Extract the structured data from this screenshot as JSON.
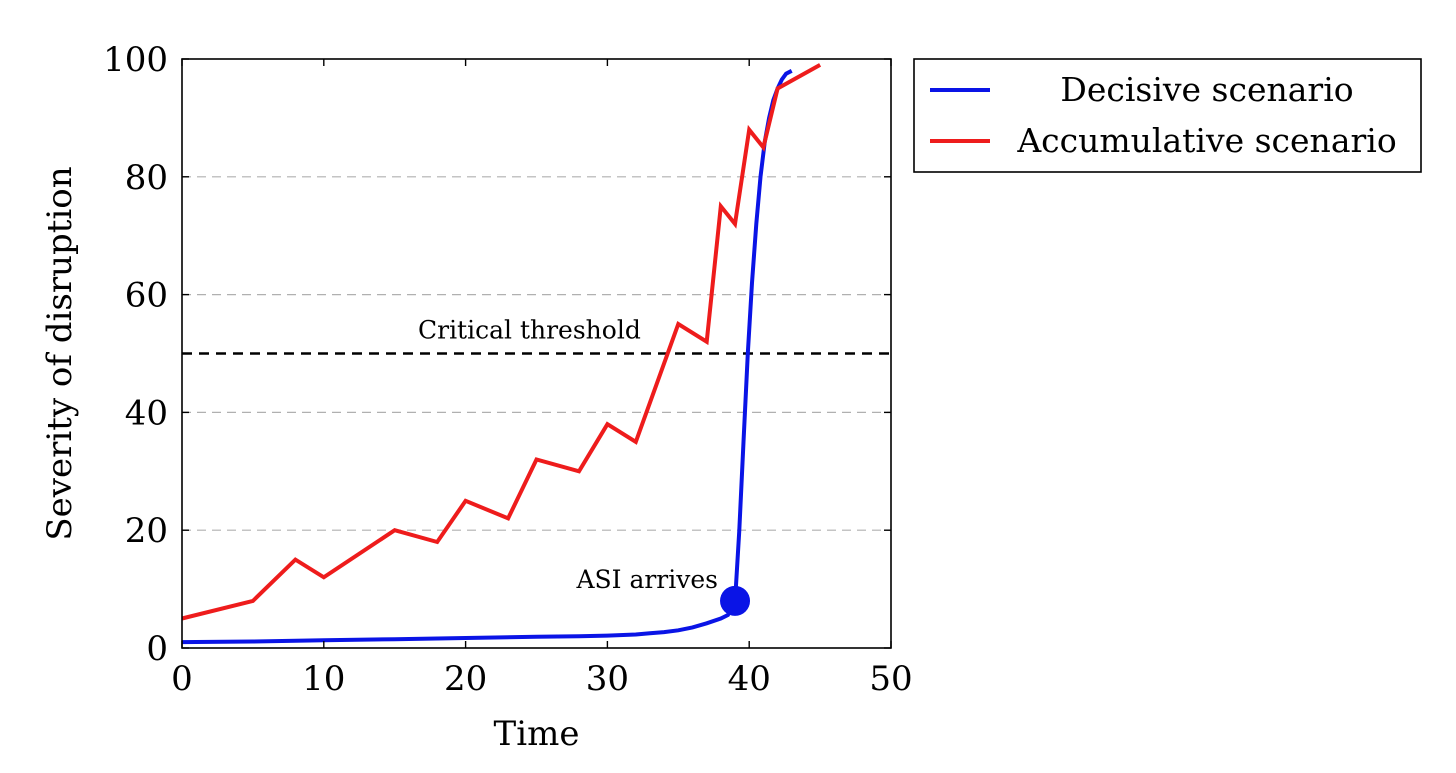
{
  "chart_data": {
    "type": "line",
    "xlabel": "Time",
    "ylabel": "Severity of disruption",
    "xlim": [
      0,
      50
    ],
    "ylim": [
      0,
      100
    ],
    "x_ticks": [
      0,
      10,
      20,
      30,
      40,
      50
    ],
    "y_ticks": [
      0,
      20,
      40,
      60,
      80,
      100
    ],
    "grid": "horizontal dashed",
    "legend_position": "outside-right-top",
    "series": [
      {
        "name": "Decisive scenario",
        "color": "#0a14e6",
        "x": [
          0,
          5,
          10,
          15,
          20,
          25,
          28,
          30,
          32,
          33,
          34,
          35,
          36,
          37,
          38,
          38.5,
          39,
          39.3,
          39.6,
          39.9,
          40.2,
          40.5,
          40.8,
          41.1,
          41.4,
          41.7,
          42,
          42.3,
          42.6,
          43
        ],
        "y": [
          1,
          1.1,
          1.3,
          1.5,
          1.7,
          1.9,
          2.0,
          2.1,
          2.3,
          2.5,
          2.7,
          3.0,
          3.5,
          4.2,
          5.0,
          5.6,
          7.8,
          20,
          35,
          50,
          62,
          72,
          80,
          86,
          90,
          93,
          95,
          96.5,
          97.5,
          98
        ]
      },
      {
        "name": "Accumulative scenario",
        "color": "#ee1c1c",
        "x": [
          0,
          5,
          8,
          10,
          15,
          18,
          20,
          23,
          25,
          28,
          30,
          32,
          35,
          37,
          38,
          39,
          40,
          41,
          42,
          45
        ],
        "y": [
          5,
          8,
          15,
          12,
          20,
          18,
          25,
          22,
          32,
          30,
          38,
          35,
          55,
          52,
          75,
          72,
          88,
          85,
          95,
          99
        ]
      }
    ],
    "reference_lines": [
      {
        "y": 50,
        "label": "Critical threshold",
        "style": "dashed",
        "color": "#000000"
      }
    ],
    "annotations": [
      {
        "text": "ASI arrives",
        "x": 39,
        "y": 8,
        "marker": "filled-circle",
        "color": "#0a14e6"
      }
    ]
  }
}
